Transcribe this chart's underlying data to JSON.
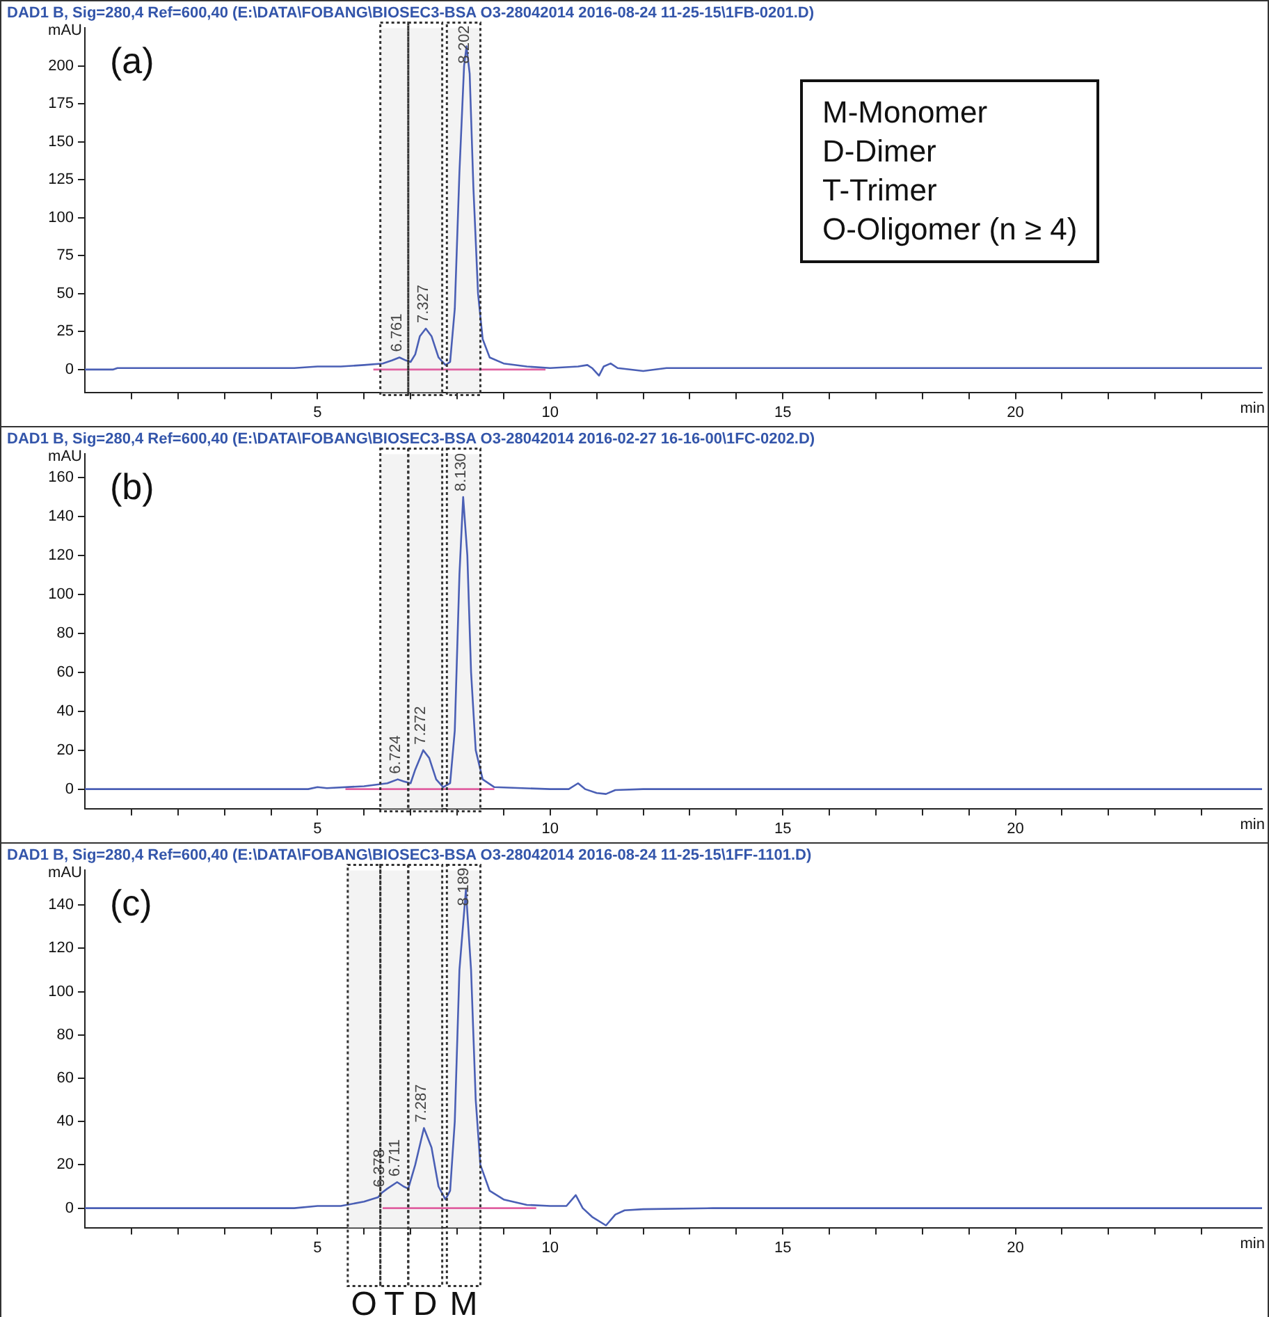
{
  "chart_data": [
    {
      "type": "line",
      "title": "DAD1 B, Sig=280,4 Ref=600,40 (E:\\DATA\\FOBANG\\BIOSEC3-BSA O3-28042014 2016-08-24 11-25-15\\1FB-0201.D)",
      "xlabel": "min",
      "ylabel": "mAU",
      "xlim": [
        0,
        25.3
      ],
      "ylim": [
        -15,
        225
      ],
      "xticks": [
        {
          "value": 1,
          "label": null
        },
        {
          "value": 2,
          "label": null
        },
        {
          "value": 3,
          "label": null
        },
        {
          "value": 4,
          "label": null
        },
        5,
        {
          "value": 6,
          "label": null
        },
        {
          "value": 7,
          "label": null
        },
        {
          "value": 8,
          "label": null
        },
        {
          "value": 9,
          "label": null
        },
        10,
        {
          "value": 11,
          "label": null
        },
        {
          "value": 12,
          "label": null
        },
        {
          "value": 13,
          "label": null
        },
        {
          "value": 14,
          "label": null
        },
        15,
        {
          "value": 16,
          "label": null
        },
        {
          "value": 17,
          "label": null
        },
        {
          "value": 18,
          "label": null
        },
        {
          "value": 19,
          "label": null
        },
        20,
        {
          "value": 21,
          "label": null
        },
        {
          "value": 22,
          "label": null
        },
        {
          "value": 23,
          "label": null
        },
        {
          "value": 24,
          "label": null
        }
      ],
      "yticks": [
        0,
        25,
        50,
        75,
        100,
        125,
        150,
        175,
        200
      ],
      "grid": false,
      "legend": false,
      "series": [
        {
          "color": "#4a5fb5",
          "x": [
            0,
            0.6,
            0.7,
            4.5,
            5,
            5.5,
            6,
            6.4,
            6.6,
            6.761,
            6.9,
            7.0,
            7.1,
            7.2,
            7.327,
            7.45,
            7.6,
            7.75,
            7.85,
            7.95,
            8.05,
            8.15,
            8.202,
            8.27,
            8.35,
            8.45,
            8.55,
            8.7,
            9.0,
            9.5,
            10.0,
            10.6,
            10.8,
            10.9,
            11.05,
            11.15,
            11.3,
            11.45,
            12,
            12.5,
            13,
            25.3
          ],
          "values": [
            0,
            0,
            1,
            1,
            2,
            2,
            3,
            4,
            6,
            8,
            6,
            5,
            10,
            22,
            27,
            22,
            8,
            3,
            5,
            40,
            130,
            200,
            213,
            195,
            120,
            50,
            20,
            8,
            4,
            2,
            1,
            2,
            3,
            1,
            -4,
            2,
            4,
            1,
            -1,
            1,
            1,
            1
          ]
        },
        {
          "color": "#e060a0",
          "x": [
            6.2,
            9.9
          ],
          "values": [
            0,
            0
          ]
        }
      ],
      "bands": [
        {
          "axis": "x",
          "from": 6.35,
          "to": 6.95,
          "color": "#f3f3f3"
        },
        {
          "axis": "x",
          "from": 6.95,
          "to": 7.68,
          "color": "#f3f3f3"
        },
        {
          "axis": "x",
          "from": 7.78,
          "to": 8.5,
          "color": "#f3f3f3"
        }
      ],
      "annotations": [
        "(a)",
        "M-Monomer",
        "D-Dimer",
        "T-Trimer",
        "O-Oligomer (n ≥ 4)",
        {
          "text": "6.761",
          "x": 6.761,
          "y": 8
        },
        {
          "text": "7.327",
          "x": 7.327,
          "y": 27
        },
        {
          "text": "8.202",
          "x": 8.202,
          "y": 213
        }
      ]
    },
    {
      "type": "line",
      "title": "DAD1 B, Sig=280,4 Ref=600,40 (E:\\DATA\\FOBANG\\BIOSEC3-BSA O3-28042014 2016-02-27 16-16-00\\1FC-0202.D)",
      "xlabel": "min",
      "ylabel": "mAU",
      "xlim": [
        0,
        25.3
      ],
      "ylim": [
        -10,
        172
      ],
      "xticks": [
        {
          "value": 1,
          "label": null
        },
        {
          "value": 2,
          "label": null
        },
        {
          "value": 3,
          "label": null
        },
        {
          "value": 4,
          "label": null
        },
        5,
        {
          "value": 6,
          "label": null
        },
        {
          "value": 7,
          "label": null
        },
        {
          "value": 8,
          "label": null
        },
        {
          "value": 9,
          "label": null
        },
        10,
        {
          "value": 11,
          "label": null
        },
        {
          "value": 12,
          "label": null
        },
        {
          "value": 13,
          "label": null
        },
        {
          "value": 14,
          "label": null
        },
        15,
        {
          "value": 16,
          "label": null
        },
        {
          "value": 17,
          "label": null
        },
        {
          "value": 18,
          "label": null
        },
        {
          "value": 19,
          "label": null
        },
        20,
        {
          "value": 21,
          "label": null
        },
        {
          "value": 22,
          "label": null
        },
        {
          "value": 23,
          "label": null
        },
        {
          "value": 24,
          "label": null
        }
      ],
      "yticks": [
        0,
        20,
        40,
        60,
        80,
        100,
        120,
        140,
        160
      ],
      "grid": false,
      "legend": false,
      "series": [
        {
          "color": "#4a5fb5",
          "x": [
            0,
            4.8,
            5.0,
            5.2,
            6,
            6.5,
            6.724,
            6.85,
            7.0,
            7.1,
            7.272,
            7.4,
            7.55,
            7.7,
            7.85,
            7.95,
            8.05,
            8.13,
            8.22,
            8.3,
            8.4,
            8.55,
            8.8,
            10,
            10.4,
            10.6,
            10.75,
            11.0,
            11.2,
            11.4,
            12,
            25.3
          ],
          "values": [
            0,
            0,
            1,
            0.5,
            1.5,
            3,
            5,
            4,
            3,
            10,
            20,
            16,
            5,
            1,
            3,
            30,
            110,
            150,
            120,
            60,
            20,
            5,
            1,
            0,
            0,
            3,
            0,
            -2,
            -2.5,
            -0.5,
            0,
            0
          ]
        },
        {
          "color": "#e060a0",
          "x": [
            5.6,
            8.8
          ],
          "values": [
            0,
            0
          ]
        }
      ],
      "bands": [
        {
          "axis": "x",
          "from": 6.35,
          "to": 6.95,
          "color": "#f3f3f3"
        },
        {
          "axis": "x",
          "from": 6.95,
          "to": 7.68,
          "color": "#f3f3f3"
        },
        {
          "axis": "x",
          "from": 7.78,
          "to": 8.5,
          "color": "#f3f3f3"
        }
      ],
      "annotations": [
        "(b)",
        {
          "text": "6.724",
          "x": 6.724,
          "y": 5
        },
        {
          "text": "7.272",
          "x": 7.272,
          "y": 20
        },
        {
          "text": "8.130",
          "x": 8.13,
          "y": 150
        }
      ]
    },
    {
      "type": "line",
      "title": "DAD1 B, Sig=280,4 Ref=600,40 (E:\\DATA\\FOBANG\\BIOSEC3-BSA O3-28042014 2016-08-24 11-25-15\\1FF-1101.D)",
      "xlabel": "min",
      "ylabel": "mAU",
      "xlim": [
        0,
        25.3
      ],
      "ylim": [
        -9,
        156
      ],
      "xticks": [
        {
          "value": 1,
          "label": null
        },
        {
          "value": 2,
          "label": null
        },
        {
          "value": 3,
          "label": null
        },
        {
          "value": 4,
          "label": null
        },
        5,
        {
          "value": 6,
          "label": null
        },
        {
          "value": 7,
          "label": null
        },
        {
          "value": 8,
          "label": null
        },
        {
          "value": 9,
          "label": null
        },
        10,
        {
          "value": 11,
          "label": null
        },
        {
          "value": 12,
          "label": null
        },
        {
          "value": 13,
          "label": null
        },
        {
          "value": 14,
          "label": null
        },
        15,
        {
          "value": 16,
          "label": null
        },
        {
          "value": 17,
          "label": null
        },
        {
          "value": 18,
          "label": null
        },
        {
          "value": 19,
          "label": null
        },
        20,
        {
          "value": 21,
          "label": null
        },
        {
          "value": 22,
          "label": null
        },
        {
          "value": 23,
          "label": null
        },
        {
          "value": 24,
          "label": null
        }
      ],
      "yticks": [
        0,
        20,
        40,
        60,
        80,
        100,
        120,
        140
      ],
      "grid": false,
      "legend": false,
      "series": [
        {
          "color": "#4a5fb5",
          "x": [
            0,
            4.5,
            5,
            5.5,
            6,
            6.3,
            6.378,
            6.5,
            6.711,
            6.85,
            6.95,
            7.1,
            7.287,
            7.45,
            7.6,
            7.75,
            7.85,
            7.95,
            8.05,
            8.189,
            8.3,
            8.4,
            8.5,
            8.7,
            9.0,
            9.5,
            10,
            10.35,
            10.55,
            10.7,
            10.9,
            11.2,
            11.4,
            11.6,
            12,
            13.5,
            25.3
          ],
          "values": [
            0,
            0,
            1,
            1,
            3,
            5,
            7,
            9,
            12,
            10,
            9,
            20,
            37,
            28,
            10,
            4,
            8,
            40,
            110,
            147,
            110,
            50,
            20,
            8,
            4,
            1.5,
            1,
            1,
            6,
            0,
            -4,
            -8,
            -3,
            -1,
            -0.5,
            0,
            0
          ]
        },
        {
          "color": "#e060a0",
          "x": [
            6.4,
            9.7
          ],
          "values": [
            0,
            0
          ]
        }
      ],
      "bands": [
        {
          "axis": "x",
          "from": 5.65,
          "to": 6.35,
          "color": "#f3f3f3",
          "label": "O"
        },
        {
          "axis": "x",
          "from": 6.35,
          "to": 6.95,
          "color": "#f3f3f3",
          "label": "T"
        },
        {
          "axis": "x",
          "from": 6.95,
          "to": 7.68,
          "color": "#f3f3f3",
          "label": "D"
        },
        {
          "axis": "x",
          "from": 7.78,
          "to": 8.5,
          "color": "#f3f3f3",
          "label": "M"
        }
      ],
      "annotations": [
        "(c)",
        {
          "text": "6.378",
          "x": 6.378,
          "y": 7
        },
        {
          "text": "6.711",
          "x": 6.711,
          "y": 12
        },
        {
          "text": "7.287",
          "x": 7.287,
          "y": 37
        },
        {
          "text": "8.189",
          "x": 8.189,
          "y": 147
        }
      ]
    }
  ]
}
